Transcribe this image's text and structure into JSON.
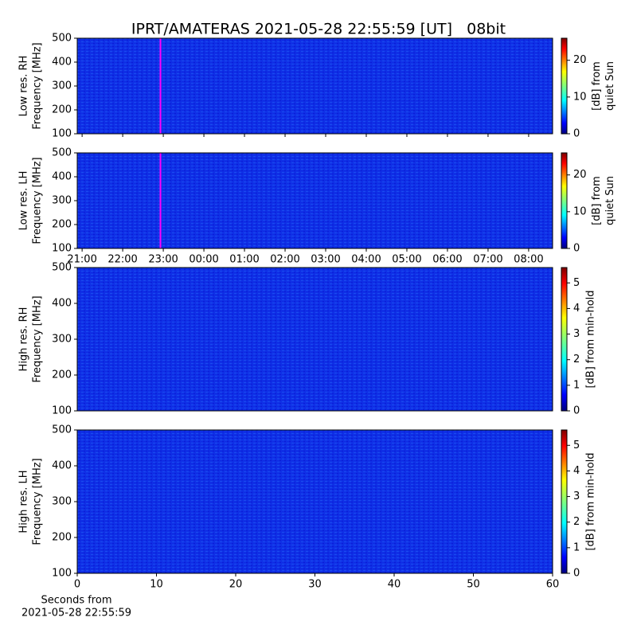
{
  "title": "IPRT/AMATERAS 2021-05-28 22:55:59 [UT]   08bit",
  "chart_data": [
    {
      "type": "heatmap",
      "ylabel": [
        "Low res. RH",
        "Frequency [MHz]"
      ],
      "xlim": [
        20.88,
        32.59
      ],
      "xticks": [
        21,
        22,
        23,
        24,
        25,
        26,
        27,
        28,
        29,
        30,
        31,
        32
      ],
      "ylim": [
        100,
        500
      ],
      "yticks": [
        100,
        200,
        300,
        400,
        500
      ],
      "marker": {
        "x": 22.93,
        "color": "#ff00ff"
      },
      "colorbar": {
        "label": [
          "[dB] from",
          "quiet Sun"
        ],
        "lim": [
          0,
          26
        ],
        "ticks": [
          0,
          10,
          20
        ],
        "colormap": "jet"
      }
    },
    {
      "type": "heatmap",
      "ylabel": [
        "Low res. LH",
        "Frequency [MHz]"
      ],
      "xlim": [
        20.88,
        32.59
      ],
      "xticks": [
        {
          "value": 21,
          "label": "21:00"
        },
        {
          "value": 22,
          "label": "22:00"
        },
        {
          "value": 23,
          "label": "23:00"
        },
        {
          "value": 24,
          "label": "00:00"
        },
        {
          "value": 25,
          "label": "01:00"
        },
        {
          "value": 26,
          "label": "02:00"
        },
        {
          "value": 27,
          "label": "03:00"
        },
        {
          "value": 28,
          "label": "04:00"
        },
        {
          "value": 29,
          "label": "05:00"
        },
        {
          "value": 30,
          "label": "06:00"
        },
        {
          "value": 31,
          "label": "07:00"
        },
        {
          "value": 32,
          "label": "08:00"
        }
      ],
      "ylim": [
        100,
        500
      ],
      "yticks": [
        100,
        200,
        300,
        400,
        500
      ],
      "marker": {
        "x": 22.93,
        "color": "#ff00ff"
      },
      "colorbar": {
        "label": [
          "[dB] from",
          "quiet Sun"
        ],
        "lim": [
          0,
          26
        ],
        "ticks": [
          0,
          10,
          20
        ],
        "colormap": "jet"
      }
    },
    {
      "type": "heatmap",
      "ylabel": [
        "High res. RH",
        "Frequency [MHz]"
      ],
      "xlim": [
        0,
        60
      ],
      "ylim": [
        100,
        500
      ],
      "yticks": [
        100,
        200,
        300,
        400,
        500
      ],
      "colorbar": {
        "label": [
          "[dB] from min-hold"
        ],
        "lim": [
          0,
          5.6
        ],
        "ticks": [
          0,
          1,
          2,
          3,
          4,
          5
        ],
        "colormap": "jet"
      }
    },
    {
      "type": "heatmap",
      "ylabel": [
        "High res. LH",
        "Frequency [MHz]"
      ],
      "xlim": [
        0,
        60
      ],
      "xticks": [
        0,
        10,
        20,
        30,
        40,
        50,
        60
      ],
      "xlabel": [
        "Seconds from",
        "2021-05-28 22:55:59"
      ],
      "ylim": [
        100,
        500
      ],
      "yticks": [
        100,
        200,
        300,
        400,
        500
      ],
      "colorbar": {
        "label": [
          "[dB] from min-hold"
        ],
        "lim": [
          0,
          5.6
        ],
        "ticks": [
          0,
          1,
          2,
          3,
          4,
          5
        ],
        "colormap": "jet"
      }
    }
  ]
}
